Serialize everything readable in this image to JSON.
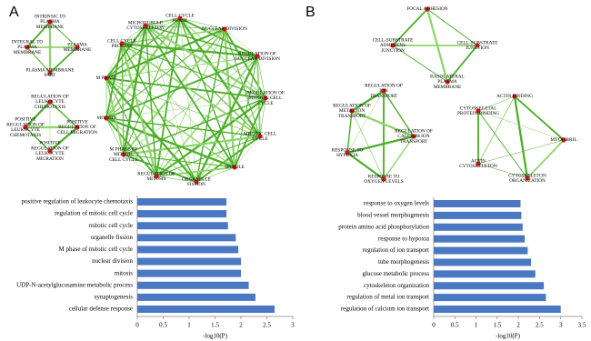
{
  "panels": [
    "A",
    "B"
  ],
  "networks": [
    [
      [
        [
          "INTRINSIC TO",
          "PLASMA",
          "MEMBRANE"
        ],
        [
          "INTEGRAL TO",
          "PLASMA",
          "MEMBRANE"
        ],
        [
          "PLASMA",
          "MEMBRANE"
        ],
        [
          "PLASMA MEMBRANE",
          "PART"
        ]
      ],
      [
        [
          "REGULATION OF",
          "LEUKOCYTE",
          "CHEMOTAXIS"
        ],
        [
          "POSITIVE",
          "REGULATION OF",
          "LEUKOCYTE",
          "CHEMOTAXIS"
        ],
        [
          "POSITIVE",
          "REGULATION OF",
          "CELL MIGRATION"
        ],
        [
          "POSITIVE",
          "REGULATION OF",
          "LEUKOCYTE",
          "MIGRATION"
        ]
      ],
      [
        [
          "CELL CYCLE",
          "PHASE"
        ],
        [
          "NUCLEAR DIVISION"
        ],
        [
          "REGULATION OF",
          "NUCLEAR DIVISION"
        ],
        [
          "REGULATION OF",
          "MITOTIC CELL",
          "CYCLE"
        ],
        [
          "MITOTIC CELL",
          "CYCLE"
        ],
        [
          "SPINDLE"
        ],
        [
          "ORGANELLE",
          "FISSION"
        ],
        [
          "REGULATION OF",
          "MITOSIS"
        ],
        [
          "M PHASE OF",
          "MITOTIC",
          "CELL CYCLE"
        ],
        [
          "MITOSIS"
        ],
        [
          "M PHASE"
        ],
        [
          "CELL CYCLE",
          "PROCESS"
        ],
        [
          "MICROTUBULE",
          "CYTOSKELETON"
        ]
      ]
    ],
    [
      [
        [
          "FOCAL ADHESION"
        ],
        [
          "CELL-SUBSTRATE",
          "ADHERENS",
          "JUNCTION"
        ],
        [
          "CELL-SUBSTRATE",
          "JUNCTION"
        ],
        [
          "BASOLATERAL",
          "PLASMA",
          "MEMBRANE"
        ]
      ],
      [
        [
          "REGULATION OF",
          "ION",
          "TRANSPORT"
        ],
        [
          "REGULATION OF",
          "METAL ION",
          "TRANSPORT"
        ],
        [
          "REGULATION OF",
          "CALCIUM ION",
          "TRANSPORT"
        ],
        [
          "RESPONSE TO",
          "HYPOXIA"
        ],
        [
          "RESPONSE TO",
          "OXYGEN LEVELS"
        ]
      ],
      [
        [
          "ACTIN BINDING"
        ],
        [
          "CYTOSKELETAL",
          "PROTEIN BINDING"
        ],
        [
          "MYOFIBRIL"
        ],
        [
          "ACTIN",
          "CYTOSKELETON"
        ],
        [
          "CYTOSKELETON",
          "ORGANIZATION"
        ]
      ]
    ]
  ],
  "chart_data": [
    {
      "type": "bar",
      "orientation": "horizontal",
      "color": "#4a78c2",
      "categories": [
        "positive regulation of leukocyte chemotaxis",
        "regulation of mitotic cell cycle",
        "mitotic cell cycle",
        "organelle fission",
        "M phase of mitotic cell cycle",
        "nuclear division",
        "mitosis",
        "UDP-N-acetylglucosamine metabolic process",
        "synaptogenesis",
        "cellular defense response"
      ],
      "values": [
        1.72,
        1.72,
        1.75,
        1.9,
        1.95,
        2.0,
        2.0,
        2.15,
        2.28,
        2.65
      ],
      "xlim": [
        0,
        3
      ],
      "xticks": [
        0,
        0.5,
        1,
        1.5,
        2,
        2.5,
        3
      ],
      "xlabel": "-log10(P)"
    },
    {
      "type": "bar",
      "orientation": "horizontal",
      "color": "#4a78c2",
      "categories": [
        "response to oxygen levels",
        "blood vessel morphogenesis",
        "protein amino acid phosphorylation",
        "response to hypoxia",
        "regulation of ion transport",
        "tube morphogenesis",
        "glucose metabolic process",
        "cytoskeleton organization",
        "regulation of metal ion transport",
        "regulation of calcium ion transport"
      ],
      "values": [
        2.05,
        2.07,
        2.1,
        2.15,
        2.22,
        2.3,
        2.4,
        2.6,
        2.65,
        3.0
      ],
      "xlim": [
        0,
        3.5
      ],
      "xticks": [
        0,
        0.5,
        1,
        1.5,
        2,
        2.5,
        3,
        3.5
      ],
      "xlabel": "-log10(P)"
    }
  ]
}
